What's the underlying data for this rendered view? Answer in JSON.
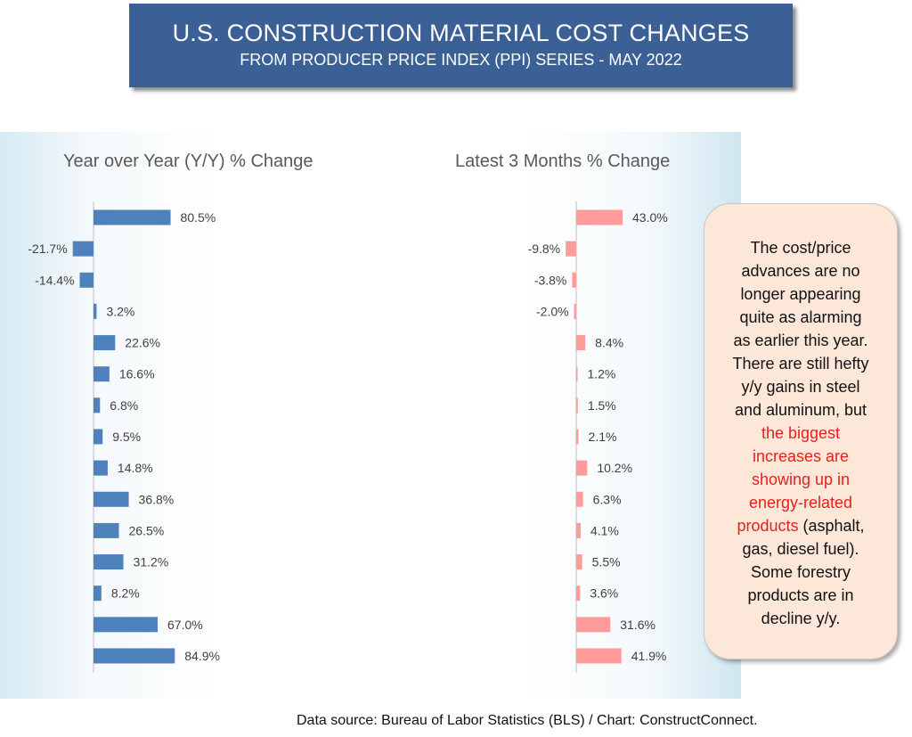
{
  "header": {
    "title": "U.S. CONSTRUCTION MATERIAL COST CHANGES",
    "subtitle": "FROM PRODUCER PRICE INDEX (PPI) SERIES - MAY 2022"
  },
  "chart_data": [
    {
      "type": "bar",
      "orientation": "horizontal",
      "title": "Year over Year (Y/Y) % Change",
      "values": [
        80.5,
        -21.7,
        -14.4,
        3.2,
        22.6,
        16.6,
        6.8,
        9.5,
        14.8,
        36.8,
        26.5,
        31.2,
        8.2,
        67.0,
        84.9
      ],
      "labels": [
        "80.5%",
        "-21.7%",
        "-14.4%",
        "3.2%",
        "22.6%",
        "16.6%",
        "6.8%",
        "9.5%",
        "14.8%",
        "36.8%",
        "26.5%",
        "31.2%",
        "8.2%",
        "67.0%",
        "84.9%"
      ],
      "color": "#4f81bd",
      "grid": false
    },
    {
      "type": "bar",
      "orientation": "horizontal",
      "title": "Latest 3 Months % Change",
      "values": [
        43.0,
        -9.8,
        -3.8,
        -2.0,
        8.4,
        1.2,
        1.5,
        2.1,
        10.2,
        6.3,
        4.1,
        5.5,
        3.6,
        31.6,
        41.9
      ],
      "labels": [
        "43.0%",
        "-9.8%",
        "-3.8%",
        "-2.0%",
        "8.4%",
        "1.2%",
        "1.5%",
        "2.1%",
        "10.2%",
        "6.3%",
        "4.1%",
        "5.5%",
        "3.6%",
        "31.6%",
        "41.9%"
      ],
      "color": "#ff9b9b",
      "grid": false
    }
  ],
  "callout": {
    "lines": [
      {
        "text": "The cost/price"
      },
      {
        "text": "advances are no"
      },
      {
        "text": "longer appearing"
      },
      {
        "text": "quite as alarming"
      },
      {
        "text": "as earlier this year."
      },
      {
        "text": "There are still hefty"
      },
      {
        "text": "y/y gains in steel"
      },
      {
        "text": "and aluminum, but"
      },
      {
        "red": "the biggest"
      },
      {
        "red": "increases are"
      },
      {
        "red": "showing up in"
      },
      {
        "red": "energy-related"
      },
      {
        "red": "products",
        "text": " (asphalt,"
      },
      {
        "text": "gas, diesel fuel)."
      },
      {
        "text": "Some forestry"
      },
      {
        "text": "products are in"
      },
      {
        "text": "decline y/y."
      }
    ],
    "highlight_color": "#e8201c"
  },
  "source": "Data source: Bureau of Labor Statistics (BLS) / Chart: ConstructConnect."
}
